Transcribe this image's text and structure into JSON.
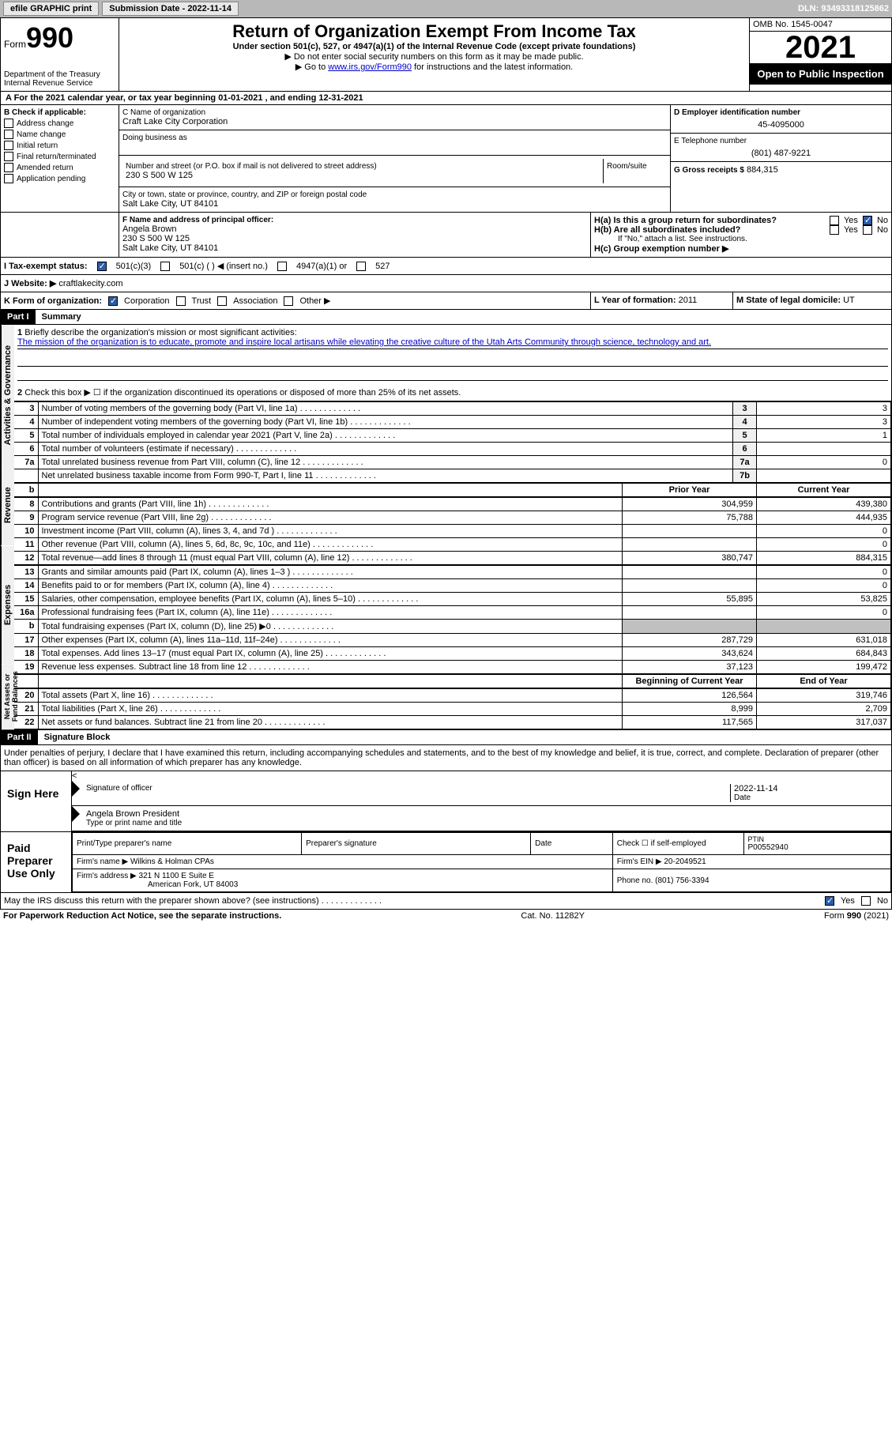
{
  "topbar": {
    "efile": "efile GRAPHIC print",
    "submission_label": "Submission Date - 2022-11-14",
    "dln_label": "DLN: 93493318125862"
  },
  "header": {
    "form_label": "Form",
    "form_number": "990",
    "dept": "Department of the Treasury",
    "irs": "Internal Revenue Service",
    "title": "Return of Organization Exempt From Income Tax",
    "subtitle": "Under section 501(c), 527, or 4947(a)(1) of the Internal Revenue Code (except private foundations)",
    "instr1": "▶ Do not enter social security numbers on this form as it may be made public.",
    "instr2_pre": "▶ Go to ",
    "instr2_link": "www.irs.gov/Form990",
    "instr2_post": " for instructions and the latest information.",
    "omb": "OMB No. 1545-0047",
    "year": "2021",
    "open": "Open to Public Inspection"
  },
  "section_a": "A For the 2021 calendar year, or tax year beginning 01-01-2021   , and ending 12-31-2021",
  "section_b": {
    "label": "B Check if applicable:",
    "items": [
      "Address change",
      "Name change",
      "Initial return",
      "Final return/terminated",
      "Amended return",
      "Application pending"
    ]
  },
  "section_c": {
    "name_label": "C Name of organization",
    "name": "Craft Lake City Corporation",
    "dba_label": "Doing business as",
    "addr_label": "Number and street (or P.O. box if mail is not delivered to street address)",
    "room_label": "Room/suite",
    "addr": "230 S 500 W 125",
    "city_label": "City or town, state or province, country, and ZIP or foreign postal code",
    "city": "Salt Lake City, UT  84101"
  },
  "section_d": {
    "label": "D Employer identification number",
    "value": "45-4095000"
  },
  "section_e": {
    "label": "E Telephone number",
    "value": "(801) 487-9221"
  },
  "section_g": {
    "label": "G Gross receipts $",
    "value": "884,315"
  },
  "section_f": {
    "label": "F Name and address of principal officer:",
    "name": "Angela Brown",
    "addr1": "230 S 500 W 125",
    "addr2": "Salt Lake City, UT  84101"
  },
  "section_h": {
    "a_label": "H(a)  Is this a group return for subordinates?",
    "b_label": "H(b)  Are all subordinates included?",
    "b_note": "If \"No,\" attach a list. See instructions.",
    "c_label": "H(c)  Group exemption number ▶",
    "yes": "Yes",
    "no": "No"
  },
  "section_i": {
    "label": "I  Tax-exempt status:",
    "opt1": "501(c)(3)",
    "opt2": "501(c) (  ) ◀ (insert no.)",
    "opt3": "4947(a)(1) or",
    "opt4": "527"
  },
  "section_j": {
    "label": "J  Website: ▶",
    "value": "craftlakecity.com"
  },
  "section_k": {
    "label": "K Form of organization:",
    "opts": [
      "Corporation",
      "Trust",
      "Association",
      "Other ▶"
    ]
  },
  "section_l": {
    "label": "L Year of formation:",
    "value": "2011"
  },
  "section_m": {
    "label": "M State of legal domicile:",
    "value": "UT"
  },
  "part1": {
    "header": "Part I",
    "title": "Summary",
    "line1_label": "Briefly describe the organization's mission or most significant activities:",
    "line1_text": "The mission of the organization is to educate, promote and inspire local artisans while elevating the creative culture of the Utah Arts Community through science, technology and art.",
    "line2": "Check this box ▶ ☐ if the organization discontinued its operations or disposed of more than 25% of its net assets.",
    "vert_labels": {
      "activities": "Activities & Governance",
      "revenue": "Revenue",
      "expenses": "Expenses",
      "netassets": "Net Assets or Fund Balances"
    },
    "col_headers": {
      "prior": "Prior Year",
      "current": "Current Year",
      "begin": "Beginning of Current Year",
      "end": "End of Year"
    },
    "rows_gov": [
      {
        "n": "3",
        "t": "Number of voting members of the governing body (Part VI, line 1a)",
        "l": "3",
        "v": "3"
      },
      {
        "n": "4",
        "t": "Number of independent voting members of the governing body (Part VI, line 1b)",
        "l": "4",
        "v": "3"
      },
      {
        "n": "5",
        "t": "Total number of individuals employed in calendar year 2021 (Part V, line 2a)",
        "l": "5",
        "v": "1"
      },
      {
        "n": "6",
        "t": "Total number of volunteers (estimate if necessary)",
        "l": "6",
        "v": ""
      },
      {
        "n": "7a",
        "t": "Total unrelated business revenue from Part VIII, column (C), line 12",
        "l": "7a",
        "v": "0"
      },
      {
        "n": "",
        "t": "Net unrelated business taxable income from Form 990-T, Part I, line 11",
        "l": "7b",
        "v": ""
      }
    ],
    "rows_rev": [
      {
        "n": "8",
        "t": "Contributions and grants (Part VIII, line 1h)",
        "p": "304,959",
        "c": "439,380"
      },
      {
        "n": "9",
        "t": "Program service revenue (Part VIII, line 2g)",
        "p": "75,788",
        "c": "444,935"
      },
      {
        "n": "10",
        "t": "Investment income (Part VIII, column (A), lines 3, 4, and 7d )",
        "p": "",
        "c": "0"
      },
      {
        "n": "11",
        "t": "Other revenue (Part VIII, column (A), lines 5, 6d, 8c, 9c, 10c, and 11e)",
        "p": "",
        "c": "0"
      },
      {
        "n": "12",
        "t": "Total revenue—add lines 8 through 11 (must equal Part VIII, column (A), line 12)",
        "p": "380,747",
        "c": "884,315"
      }
    ],
    "rows_exp": [
      {
        "n": "13",
        "t": "Grants and similar amounts paid (Part IX, column (A), lines 1–3 )",
        "p": "",
        "c": "0"
      },
      {
        "n": "14",
        "t": "Benefits paid to or for members (Part IX, column (A), line 4)",
        "p": "",
        "c": "0"
      },
      {
        "n": "15",
        "t": "Salaries, other compensation, employee benefits (Part IX, column (A), lines 5–10)",
        "p": "55,895",
        "c": "53,825"
      },
      {
        "n": "16a",
        "t": "Professional fundraising fees (Part IX, column (A), line 11e)",
        "p": "",
        "c": "0"
      },
      {
        "n": "b",
        "t": "Total fundraising expenses (Part IX, column (D), line 25) ▶0",
        "p": "shaded",
        "c": "shaded"
      },
      {
        "n": "17",
        "t": "Other expenses (Part IX, column (A), lines 11a–11d, 11f–24e)",
        "p": "287,729",
        "c": "631,018"
      },
      {
        "n": "18",
        "t": "Total expenses. Add lines 13–17 (must equal Part IX, column (A), line 25)",
        "p": "343,624",
        "c": "684,843"
      },
      {
        "n": "19",
        "t": "Revenue less expenses. Subtract line 18 from line 12",
        "p": "37,123",
        "c": "199,472"
      }
    ],
    "rows_net": [
      {
        "n": "20",
        "t": "Total assets (Part X, line 16)",
        "p": "126,564",
        "c": "319,746"
      },
      {
        "n": "21",
        "t": "Total liabilities (Part X, line 26)",
        "p": "8,999",
        "c": "2,709"
      },
      {
        "n": "22",
        "t": "Net assets or fund balances. Subtract line 21 from line 20",
        "p": "117,565",
        "c": "317,037"
      }
    ]
  },
  "part2": {
    "header": "Part II",
    "title": "Signature Block",
    "declaration": "Under penalties of perjury, I declare that I have examined this return, including accompanying schedules and statements, and to the best of my knowledge and belief, it is true, correct, and complete. Declaration of preparer (other than officer) is based on all information of which preparer has any knowledge.",
    "sign_here": "Sign Here",
    "sig_officer": "Signature of officer",
    "sig_date": "2022-11-14",
    "date_label": "Date",
    "officer_name": "Angela Brown President",
    "type_name": "Type or print name and title",
    "paid_prep": "Paid Preparer Use Only",
    "prep_name_label": "Print/Type preparer's name",
    "prep_sig_label": "Preparer's signature",
    "check_self": "Check ☐ if self-employed",
    "ptin_label": "PTIN",
    "ptin": "P00552940",
    "firm_name_label": "Firm's name    ▶",
    "firm_name": "Wilkins & Holman CPAs",
    "firm_ein_label": "Firm's EIN ▶",
    "firm_ein": "20-2049521",
    "firm_addr_label": "Firm's address ▶",
    "firm_addr1": "321 N 1100 E Suite E",
    "firm_addr2": "American Fork, UT  84003",
    "phone_label": "Phone no.",
    "phone": "(801) 756-3394",
    "discuss": "May the IRS discuss this return with the preparer shown above? (see instructions)",
    "yes": "Yes",
    "no": "No"
  },
  "footer": {
    "left": "For Paperwork Reduction Act Notice, see the separate instructions.",
    "center": "Cat. No. 11282Y",
    "right": "Form 990 (2021)"
  }
}
